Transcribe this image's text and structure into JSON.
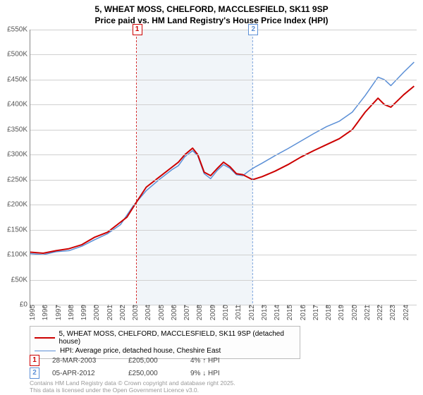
{
  "title_line1": "5, WHEAT MOSS, CHELFORD, MACCLESFIELD, SK11 9SP",
  "title_line2": "Price paid vs. HM Land Registry's House Price Index (HPI)",
  "chart": {
    "type": "line",
    "background_color": "#ffffff",
    "grid_color": "#d0d0d0",
    "x_years": [
      1995,
      1996,
      1997,
      1998,
      1999,
      2000,
      2001,
      2002,
      2003,
      2004,
      2005,
      2006,
      2007,
      2008,
      2009,
      2010,
      2011,
      2012,
      2013,
      2014,
      2015,
      2016,
      2017,
      2018,
      2019,
      2020,
      2021,
      2022,
      2023,
      2024
    ],
    "ylim": [
      0,
      550000
    ],
    "ytick_step": 50000,
    "yticks": [
      "£0",
      "£50K",
      "£100K",
      "£150K",
      "£200K",
      "£250K",
      "£300K",
      "£350K",
      "£400K",
      "£450K",
      "£500K",
      "£550K"
    ],
    "shade_band": {
      "start_year": 2003.24,
      "end_year": 2012.26,
      "color": "#e8eef5"
    },
    "series": [
      {
        "name": "price_paid",
        "color": "#cc0000",
        "width": 2,
        "points": [
          [
            1995,
            105000
          ],
          [
            1996,
            103000
          ],
          [
            1997,
            108000
          ],
          [
            1998,
            112000
          ],
          [
            1999,
            120000
          ],
          [
            2000,
            135000
          ],
          [
            2001,
            145000
          ],
          [
            2002,
            165000
          ],
          [
            2002.5,
            175000
          ],
          [
            2003.24,
            205000
          ],
          [
            2004,
            235000
          ],
          [
            2005,
            255000
          ],
          [
            2006,
            275000
          ],
          [
            2006.5,
            285000
          ],
          [
            2007,
            300000
          ],
          [
            2007.6,
            313000
          ],
          [
            2008,
            300000
          ],
          [
            2008.5,
            265000
          ],
          [
            2009,
            258000
          ],
          [
            2009.5,
            272000
          ],
          [
            2010,
            285000
          ],
          [
            2010.5,
            276000
          ],
          [
            2011,
            262000
          ],
          [
            2011.5,
            260000
          ],
          [
            2012.26,
            250000
          ],
          [
            2013,
            256000
          ],
          [
            2014,
            267000
          ],
          [
            2015,
            280000
          ],
          [
            2016,
            295000
          ],
          [
            2017,
            308000
          ],
          [
            2018,
            320000
          ],
          [
            2019,
            332000
          ],
          [
            2020,
            350000
          ],
          [
            2021,
            385000
          ],
          [
            2022,
            413000
          ],
          [
            2022.5,
            400000
          ],
          [
            2023,
            395000
          ],
          [
            2024,
            420000
          ],
          [
            2024.8,
            437000
          ]
        ]
      },
      {
        "name": "hpi",
        "color": "#5b8fd6",
        "width": 1.5,
        "points": [
          [
            1995,
            102000
          ],
          [
            1996,
            100000
          ],
          [
            1997,
            106000
          ],
          [
            1998,
            108000
          ],
          [
            1999,
            117000
          ],
          [
            2000,
            130000
          ],
          [
            2001,
            142000
          ],
          [
            2002,
            160000
          ],
          [
            2003,
            198000
          ],
          [
            2004,
            228000
          ],
          [
            2005,
            250000
          ],
          [
            2006,
            270000
          ],
          [
            2006.5,
            278000
          ],
          [
            2007,
            296000
          ],
          [
            2007.6,
            308000
          ],
          [
            2008,
            298000
          ],
          [
            2008.5,
            262000
          ],
          [
            2009,
            252000
          ],
          [
            2009.5,
            268000
          ],
          [
            2010,
            280000
          ],
          [
            2010.5,
            273000
          ],
          [
            2011,
            260000
          ],
          [
            2011.5,
            258000
          ],
          [
            2012,
            268000
          ],
          [
            2012.5,
            276000
          ],
          [
            2013,
            283000
          ],
          [
            2014,
            298000
          ],
          [
            2015,
            312000
          ],
          [
            2016,
            327000
          ],
          [
            2017,
            342000
          ],
          [
            2018,
            356000
          ],
          [
            2019,
            367000
          ],
          [
            2020,
            385000
          ],
          [
            2021,
            418000
          ],
          [
            2022,
            455000
          ],
          [
            2022.5,
            450000
          ],
          [
            2023,
            438000
          ],
          [
            2024,
            465000
          ],
          [
            2024.8,
            485000
          ]
        ]
      }
    ],
    "markers": [
      {
        "id": "1",
        "year": 2003.24,
        "color": "#cc0000",
        "label_y": 34
      },
      {
        "id": "2",
        "year": 2012.26,
        "color": "#5b8fd6",
        "label_y": 34
      }
    ]
  },
  "legend": [
    {
      "color": "#cc0000",
      "width": 2,
      "label": "5, WHEAT MOSS, CHELFORD, MACCLESFIELD, SK11 9SP (detached house)"
    },
    {
      "color": "#5b8fd6",
      "width": 1.5,
      "label": "HPI: Average price, detached house, Cheshire East"
    }
  ],
  "sales": [
    {
      "id": "1",
      "color": "#cc0000",
      "date": "28-MAR-2003",
      "price": "£205,000",
      "delta": "4% ↑ HPI"
    },
    {
      "id": "2",
      "color": "#5b8fd6",
      "date": "05-APR-2012",
      "price": "£250,000",
      "delta": "9% ↓ HPI"
    }
  ],
  "footer_line1": "Contains HM Land Registry data © Crown copyright and database right 2025.",
  "footer_line2": "This data is licensed under the Open Government Licence v3.0."
}
